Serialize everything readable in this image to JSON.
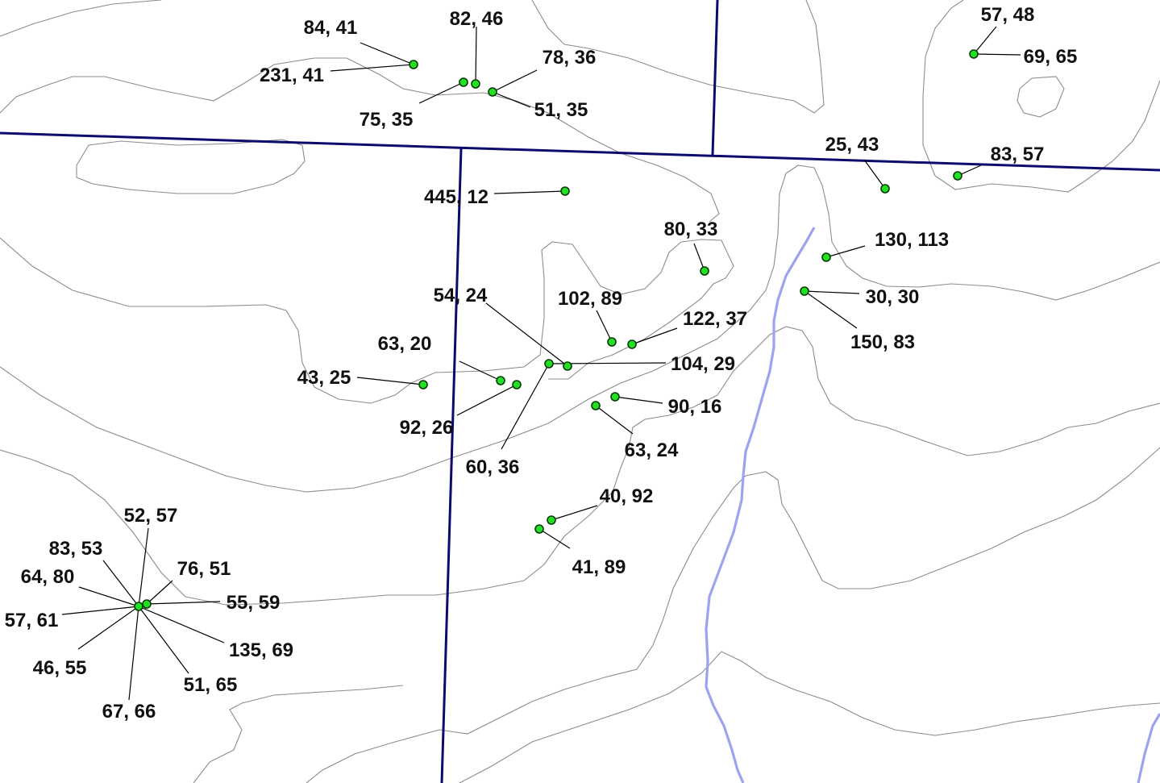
{
  "map": {
    "colors": {
      "background": "#ffffff",
      "contour": "#8c8c8c",
      "road": "#0b0b6e",
      "river": "#9da3f0",
      "well_fill": "#22e022",
      "label": "#111111"
    },
    "labels": [
      "84, 41",
      "231, 41",
      "82, 46",
      "78, 36",
      "75, 35",
      "51, 35",
      "57, 48",
      "69, 65",
      "25, 43",
      "83, 57",
      "445, 12",
      "80, 33",
      "130, 113",
      "30, 30",
      "150, 83",
      "54, 24",
      "102, 89",
      "122, 37",
      "63, 20",
      "104, 29",
      "43, 25",
      "92, 26",
      "90, 16",
      "60, 36",
      "63, 24",
      "40, 92",
      "41, 89",
      "52, 57",
      "83, 53",
      "76, 51",
      "64, 80",
      "55, 59",
      "57, 61",
      "135, 69",
      "46, 55",
      "51, 65",
      "67, 66"
    ]
  }
}
